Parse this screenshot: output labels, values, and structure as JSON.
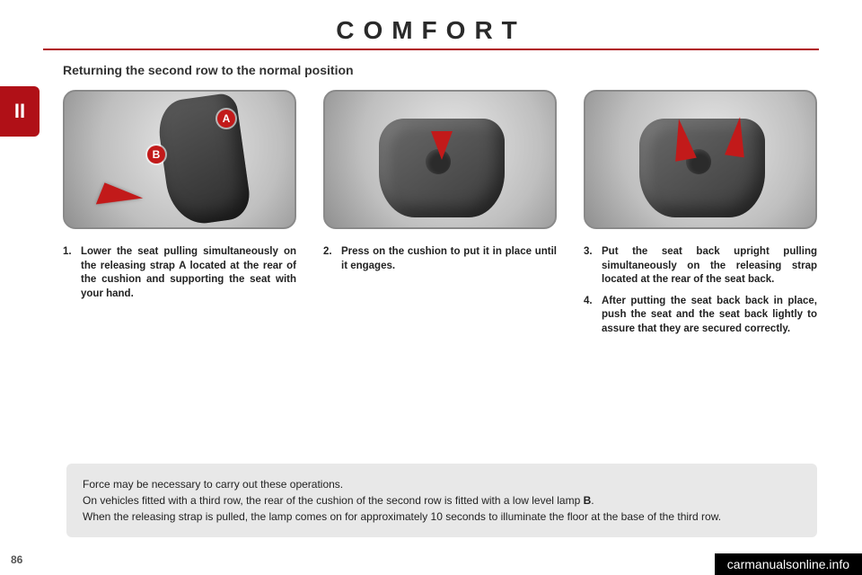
{
  "header": {
    "title": "COMFORT"
  },
  "tab": {
    "label": "II"
  },
  "subheading": "Returning the second row to the normal position",
  "markers": {
    "a": "A",
    "b": "B"
  },
  "steps": {
    "col1": [
      {
        "n": "1.",
        "t": "Lower the seat pulling simultaneously on the releasing strap A located at the rear of the cushion and supporting the seat with your hand."
      }
    ],
    "col2": [
      {
        "n": "2.",
        "t": "Press on the cushion to put it in place until it engages."
      }
    ],
    "col3": [
      {
        "n": "3.",
        "t": "Put the seat back upright pulling simultaneously on the releasing strap located at the rear of the seat back."
      },
      {
        "n": "4.",
        "t": "After putting the seat back back in place, push the seat and the seat back lightly to assure that they are secured correctly."
      }
    ]
  },
  "notice": {
    "line1": "Force may be necessary to carry out these operations.",
    "line2a": "On vehicles fitted with a third row, the rear of the cushion of the second row is fitted with a low level lamp ",
    "line2b": "B",
    "line2c": ".",
    "line3": "When the releasing strap is pulled, the lamp comes on for approximately 10 seconds to illuminate the floor at the base of the third row."
  },
  "page_number": "86",
  "watermark": "carmanualsonline.info",
  "colors": {
    "accent": "#b01017",
    "notice_bg": "#e8e8e8",
    "text": "#222222"
  }
}
